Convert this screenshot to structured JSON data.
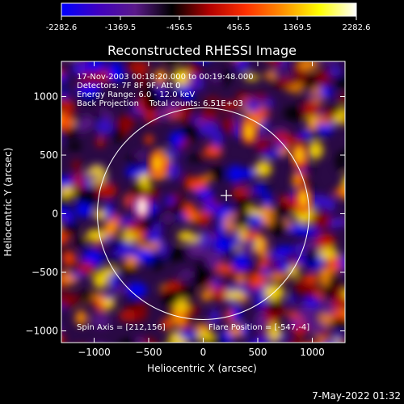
{
  "chart_data": {
    "type": "heatmap",
    "title": "Reconstructed RHESSI Image",
    "xlabel": "Heliocentric X (arcsec)",
    "ylabel": "Heliocentric Y (arcsec)",
    "xlim": [
      -1300,
      1300
    ],
    "ylim": [
      -1100,
      1300
    ],
    "x_ticks": [
      -1000,
      -500,
      0,
      500,
      1000
    ],
    "y_ticks": [
      -1000,
      -500,
      0,
      500,
      1000
    ],
    "colorbar": {
      "min": -2282.6,
      "max": 2282.6,
      "tick_labels": [
        "-2282.6",
        "-1369.5",
        "-456.5",
        "456.5",
        "1369.5",
        "2282.6"
      ],
      "colors": [
        "#0000ff",
        "#4000c0",
        "#5a1a8a",
        "#000000",
        "#b00000",
        "#ff3000",
        "#ff9000",
        "#ffff00",
        "#ffffff"
      ]
    },
    "annotations": [
      "17-Nov-2003 00:18:20.000 to 00:19:48.000",
      "Detectors: 7F 8F 9F, Att 0",
      "Energy Range: 6.0 - 12.0 keV",
      "Back Projection    Total counts: 6.51E+03"
    ],
    "spin_axis_label": "Spin Axis = [212,156]",
    "flare_position_label": "Flare Position = [-547,-4]",
    "solar_limb_radius_arcsec": 970,
    "cross_marker": [
      212,
      156
    ],
    "bright_sources": [
      {
        "x": -560,
        "y": 60,
        "intensity": 2282.6
      },
      {
        "x": 920,
        "y": 130,
        "intensity": 1800
      },
      {
        "x": 880,
        "y": 500,
        "intensity": 1700
      },
      {
        "x": -420,
        "y": 430,
        "intensity": 1500
      },
      {
        "x": 420,
        "y": 700,
        "intensity": 1400
      }
    ]
  },
  "footer": {
    "date": "7-May-2022 01:32"
  }
}
